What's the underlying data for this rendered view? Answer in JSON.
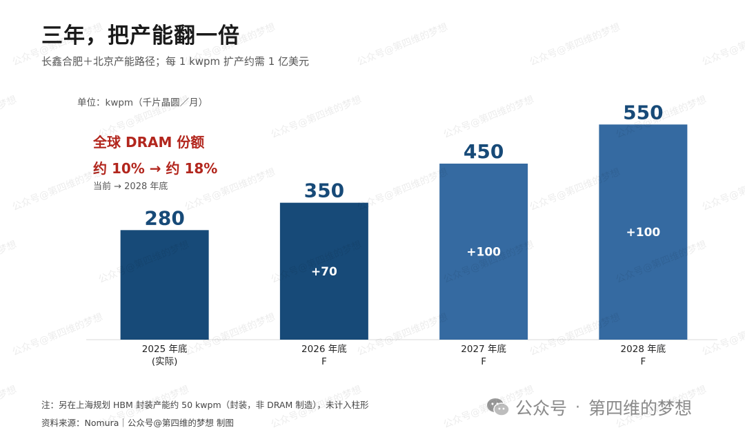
{
  "header": {
    "title": "三年，把产能翻一倍",
    "subtitle": "长鑫合肥＋北京产能路径；每 1 kwpm 扩产约需 1 亿美元",
    "unit": "单位：kwpm（千片晶圆／月）"
  },
  "highlight": {
    "line1": "全球 DRAM 份额",
    "line2": "约 10%  →  约 18%",
    "line3": "当前 → 2028 年底"
  },
  "chart_data": {
    "type": "bar",
    "categories": [
      "2025 年底\n(实际)",
      "2026 年底\nF",
      "2027 年底\nF",
      "2028 年底\nF"
    ],
    "category_lines": [
      [
        "2025 年底",
        "(实际)"
      ],
      [
        "2026 年底",
        "F"
      ],
      [
        "2027 年底",
        "F"
      ],
      [
        "2028 年底",
        "F"
      ]
    ],
    "values": [
      280,
      350,
      450,
      550
    ],
    "value_labels": [
      "280",
      "350",
      "450",
      "550"
    ],
    "increments": [
      "",
      "+70",
      "+100",
      "+100"
    ],
    "ylim": [
      0,
      600
    ],
    "colors": [
      "#174a78",
      "#174a78",
      "#356aa1",
      "#356aa1"
    ],
    "value_label_color": "#174a78"
  },
  "footer": {
    "note": "注：另在上海规划 HBM 封装产能约 50 kwpm（封装，非 DRAM 制造），未计入柱形",
    "source": "资料来源：Nomura｜公众号@第四维的梦想 制图"
  },
  "brand": {
    "icon": "wechat-icon",
    "name1": "公众号",
    "sep": "·",
    "name2": "第四维的梦想"
  },
  "watermark": {
    "text": "公众号@第四维的梦想"
  }
}
